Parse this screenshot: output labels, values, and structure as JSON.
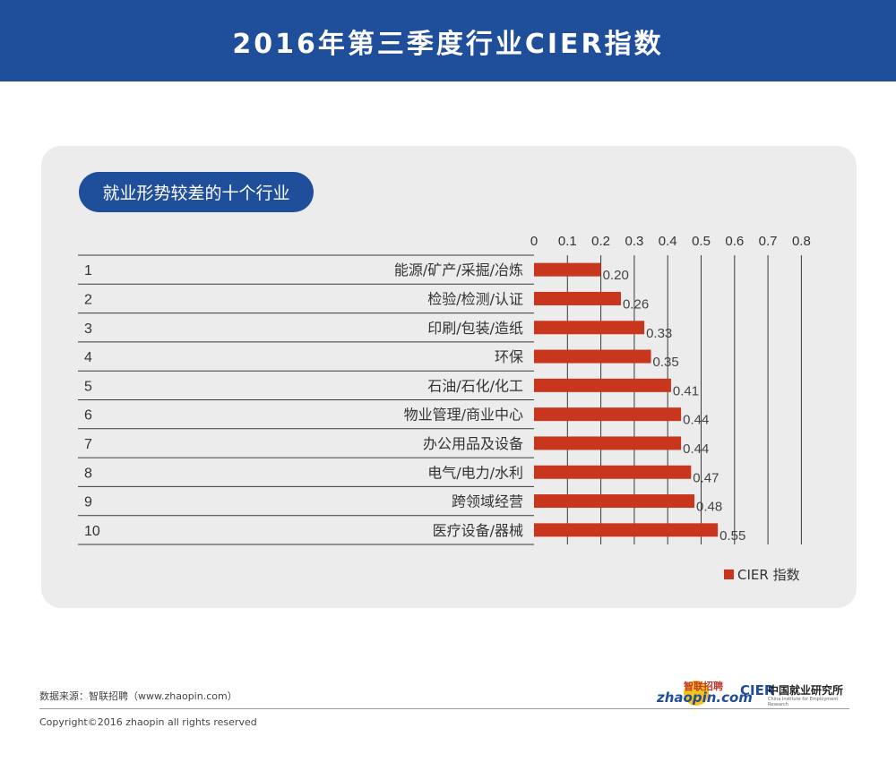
{
  "header": {
    "title": "2016年第三季度行业CIER指数"
  },
  "section": {
    "title": "就业形势较差的十个行业"
  },
  "chart_data": {
    "type": "bar",
    "orientation": "horizontal",
    "title": "",
    "categories": [
      "能源/矿产/采掘/冶炼",
      "检验/检测/认证",
      "印刷/包装/造纸",
      "环保",
      "石油/石化/化工",
      "物业管理/商业中心",
      "办公用品及设备",
      "电气/电力/水利",
      "跨领域经营",
      "医疗设备/器械"
    ],
    "ranks": [
      "1",
      "2",
      "3",
      "4",
      "5",
      "6",
      "7",
      "8",
      "9",
      "10"
    ],
    "series": [
      {
        "name": "CIER 指数",
        "values": [
          0.2,
          0.26,
          0.33,
          0.35,
          0.41,
          0.44,
          0.44,
          0.47,
          0.48,
          0.55
        ],
        "color": "#c8361e"
      }
    ],
    "value_labels": [
      "0.20",
      "0.26",
      "0.33",
      "0.35",
      "0.41",
      "0.44",
      "0.44",
      "0.47",
      "0.48",
      "0.55"
    ],
    "xlim": [
      0,
      0.8
    ],
    "xticks": [
      "0",
      "0.1",
      "0.2",
      "0.3",
      "0.4",
      "0.5",
      "0.6",
      "0.7",
      "0.8"
    ],
    "xtick_values": [
      0,
      0.1,
      0.2,
      0.3,
      0.4,
      0.5,
      0.6,
      0.7,
      0.8
    ],
    "legend_position": "bottom-right",
    "grid": "vertical"
  },
  "footer": {
    "source": "数据来源：智联招聘（www.zhaopin.com）",
    "copyright": "Copyright©2016 zhaopin all rights reserved"
  },
  "logos": {
    "zhaopin_cn": "智联招聘",
    "zhaopin_en": "zhaopin.com",
    "cier_mark": "CIER",
    "cier_cn": "中国就业研究所",
    "cier_en": "China Institute for Employment Research"
  }
}
